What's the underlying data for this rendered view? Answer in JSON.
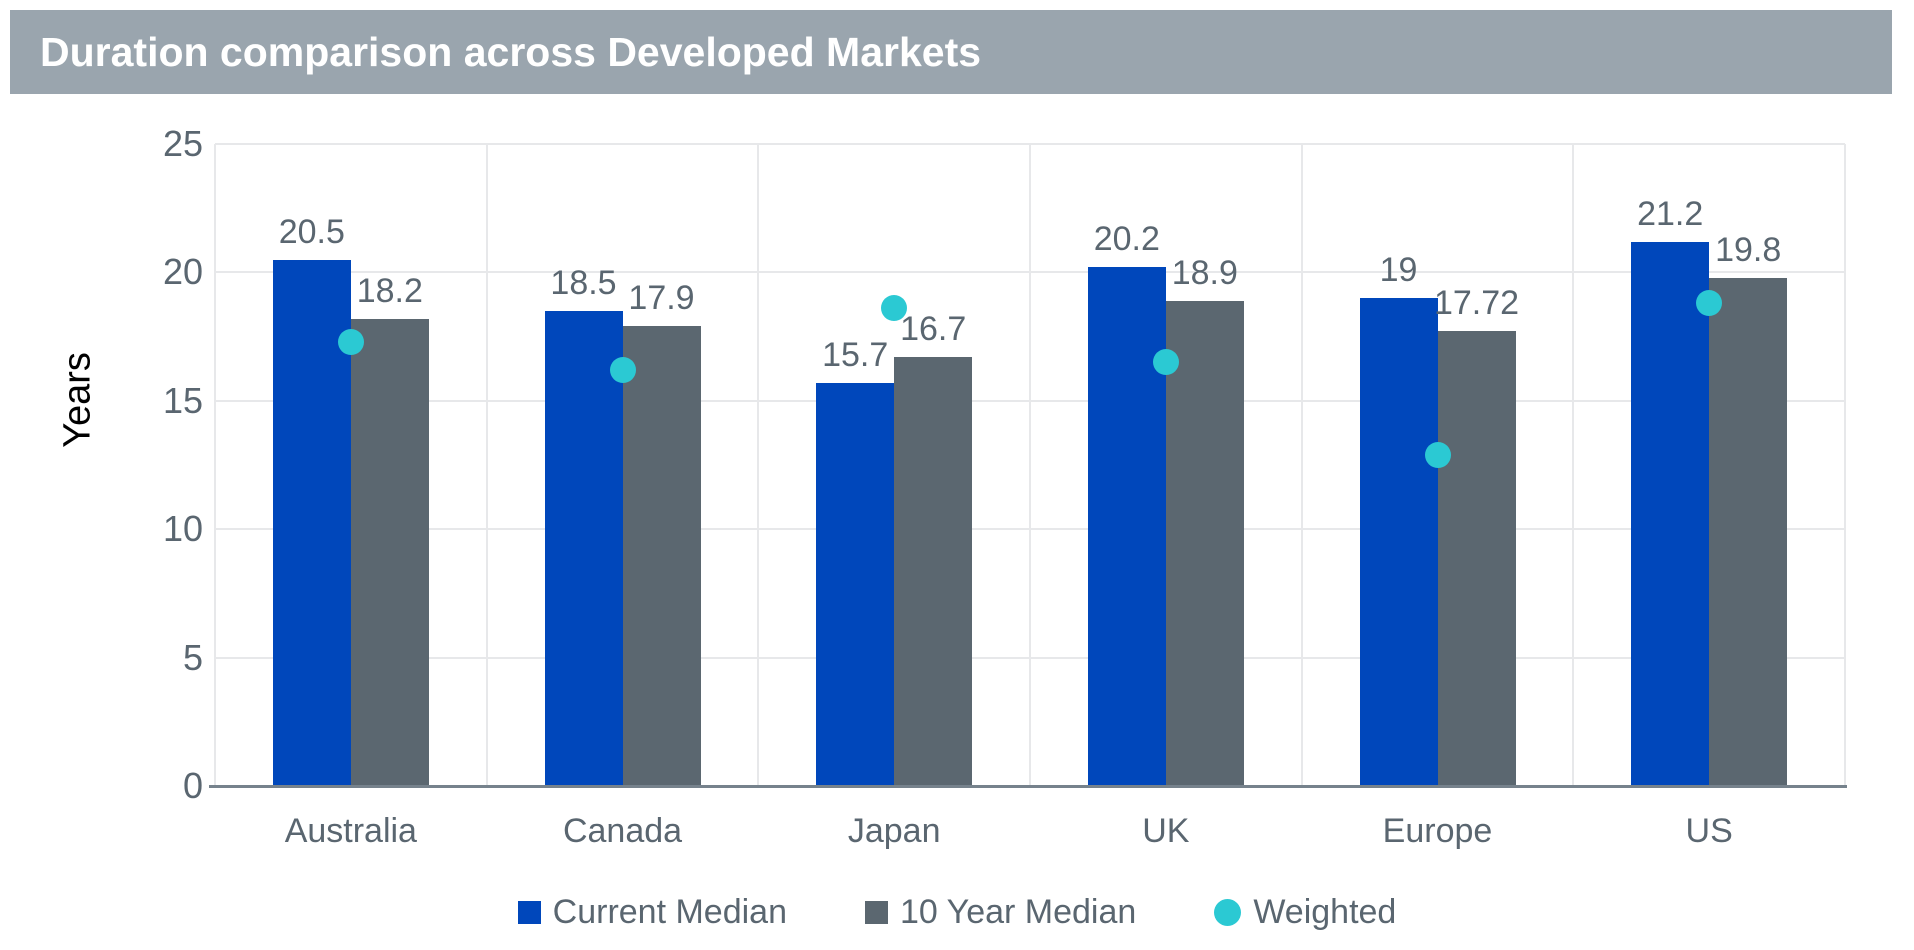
{
  "title": "Duration comparison across Developed Markets",
  "colors": {
    "title_bar_bg": "#9aa5ae",
    "title_text": "#ffffff",
    "current_median": "#0047bb",
    "ten_year_median": "#5b6770",
    "weighted": "#2bc9d3",
    "gridline": "#e7e8ea",
    "axis_line": "#76828c",
    "label_text": "#5a6670",
    "axis_title_text": "#000000"
  },
  "chart_data": {
    "type": "bar",
    "title": "Duration comparison across Developed Markets",
    "categories": [
      "Australia",
      "Canada",
      "Japan",
      "UK",
      "Europe",
      "US"
    ],
    "series": [
      {
        "name": "Current Median",
        "render": "bar",
        "color_key": "current_median",
        "values": [
          20.5,
          18.5,
          15.7,
          20.2,
          19,
          21.2
        ],
        "labels": [
          "20.5",
          "18.5",
          "15.7",
          "20.2",
          "19",
          "21.2"
        ]
      },
      {
        "name": "10 Year Median",
        "render": "bar",
        "color_key": "ten_year_median",
        "values": [
          18.2,
          17.9,
          16.7,
          18.9,
          17.72,
          19.8
        ],
        "labels": [
          "18.2",
          "17.9",
          "16.7",
          "18.9",
          "17.72",
          "19.8"
        ]
      },
      {
        "name": "Weighted",
        "render": "scatter",
        "color_key": "weighted",
        "values": [
          17.3,
          16.2,
          18.6,
          16.5,
          12.9,
          18.8
        ]
      }
    ],
    "xlabel": "",
    "ylabel": "Years",
    "ylim": [
      0,
      25
    ],
    "yticks": [
      "0",
      "5",
      "10",
      "15",
      "20",
      "25"
    ],
    "grid": true,
    "legend_position": "bottom"
  },
  "legend": {
    "items": [
      {
        "label": "Current Median",
        "marker": "square",
        "color_key": "current_median"
      },
      {
        "label": "10 Year Median",
        "marker": "square",
        "color_key": "ten_year_median"
      },
      {
        "label": "Weighted",
        "marker": "circle",
        "color_key": "weighted"
      }
    ]
  }
}
